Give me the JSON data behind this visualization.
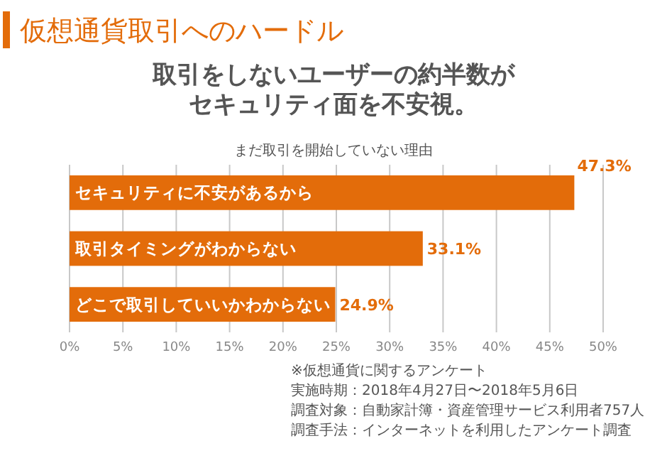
{
  "chart_data": {
    "type": "bar",
    "orientation": "horizontal",
    "title": "仮想通貨取引へのハードル",
    "subtitle": "取引をしないユーザーの約半数がセキュリティ面を不安視。",
    "xlabel": "まだ取引を開始していない理由",
    "categories": [
      "セキュリティに不安があるから",
      "取引タイミングがわからない",
      "どこで取引していいかわからない"
    ],
    "values": [
      47.3,
      33.1,
      24.9
    ],
    "color": "#e36c0a",
    "value_labels": [
      "47.3%",
      "33.1%",
      "24.9%"
    ],
    "xlim": [
      0,
      50
    ],
    "xticks": [
      {
        "value": 0,
        "label": "0%"
      },
      {
        "value": 5,
        "label": "5%"
      },
      {
        "value": 10,
        "label": "10%"
      },
      {
        "value": 15,
        "label": "15%"
      },
      {
        "value": 20,
        "label": "20%"
      },
      {
        "value": 25,
        "label": "25%"
      },
      {
        "value": 30,
        "label": "30%"
      },
      {
        "value": 35,
        "label": "35%"
      },
      {
        "value": 40,
        "label": "40%"
      },
      {
        "value": 45,
        "label": "45%"
      },
      {
        "value": 50,
        "label": "50%"
      }
    ],
    "grid": "x",
    "annotations": [
      "※仮想通貨に関するアンケート",
      "実施時期：2018年4月27日〜2018年5月6日",
      "調査対象：自動家計簿・資産管理サービス利用者757人",
      "調査手法：インターネットを利用したアンケート調査"
    ]
  }
}
